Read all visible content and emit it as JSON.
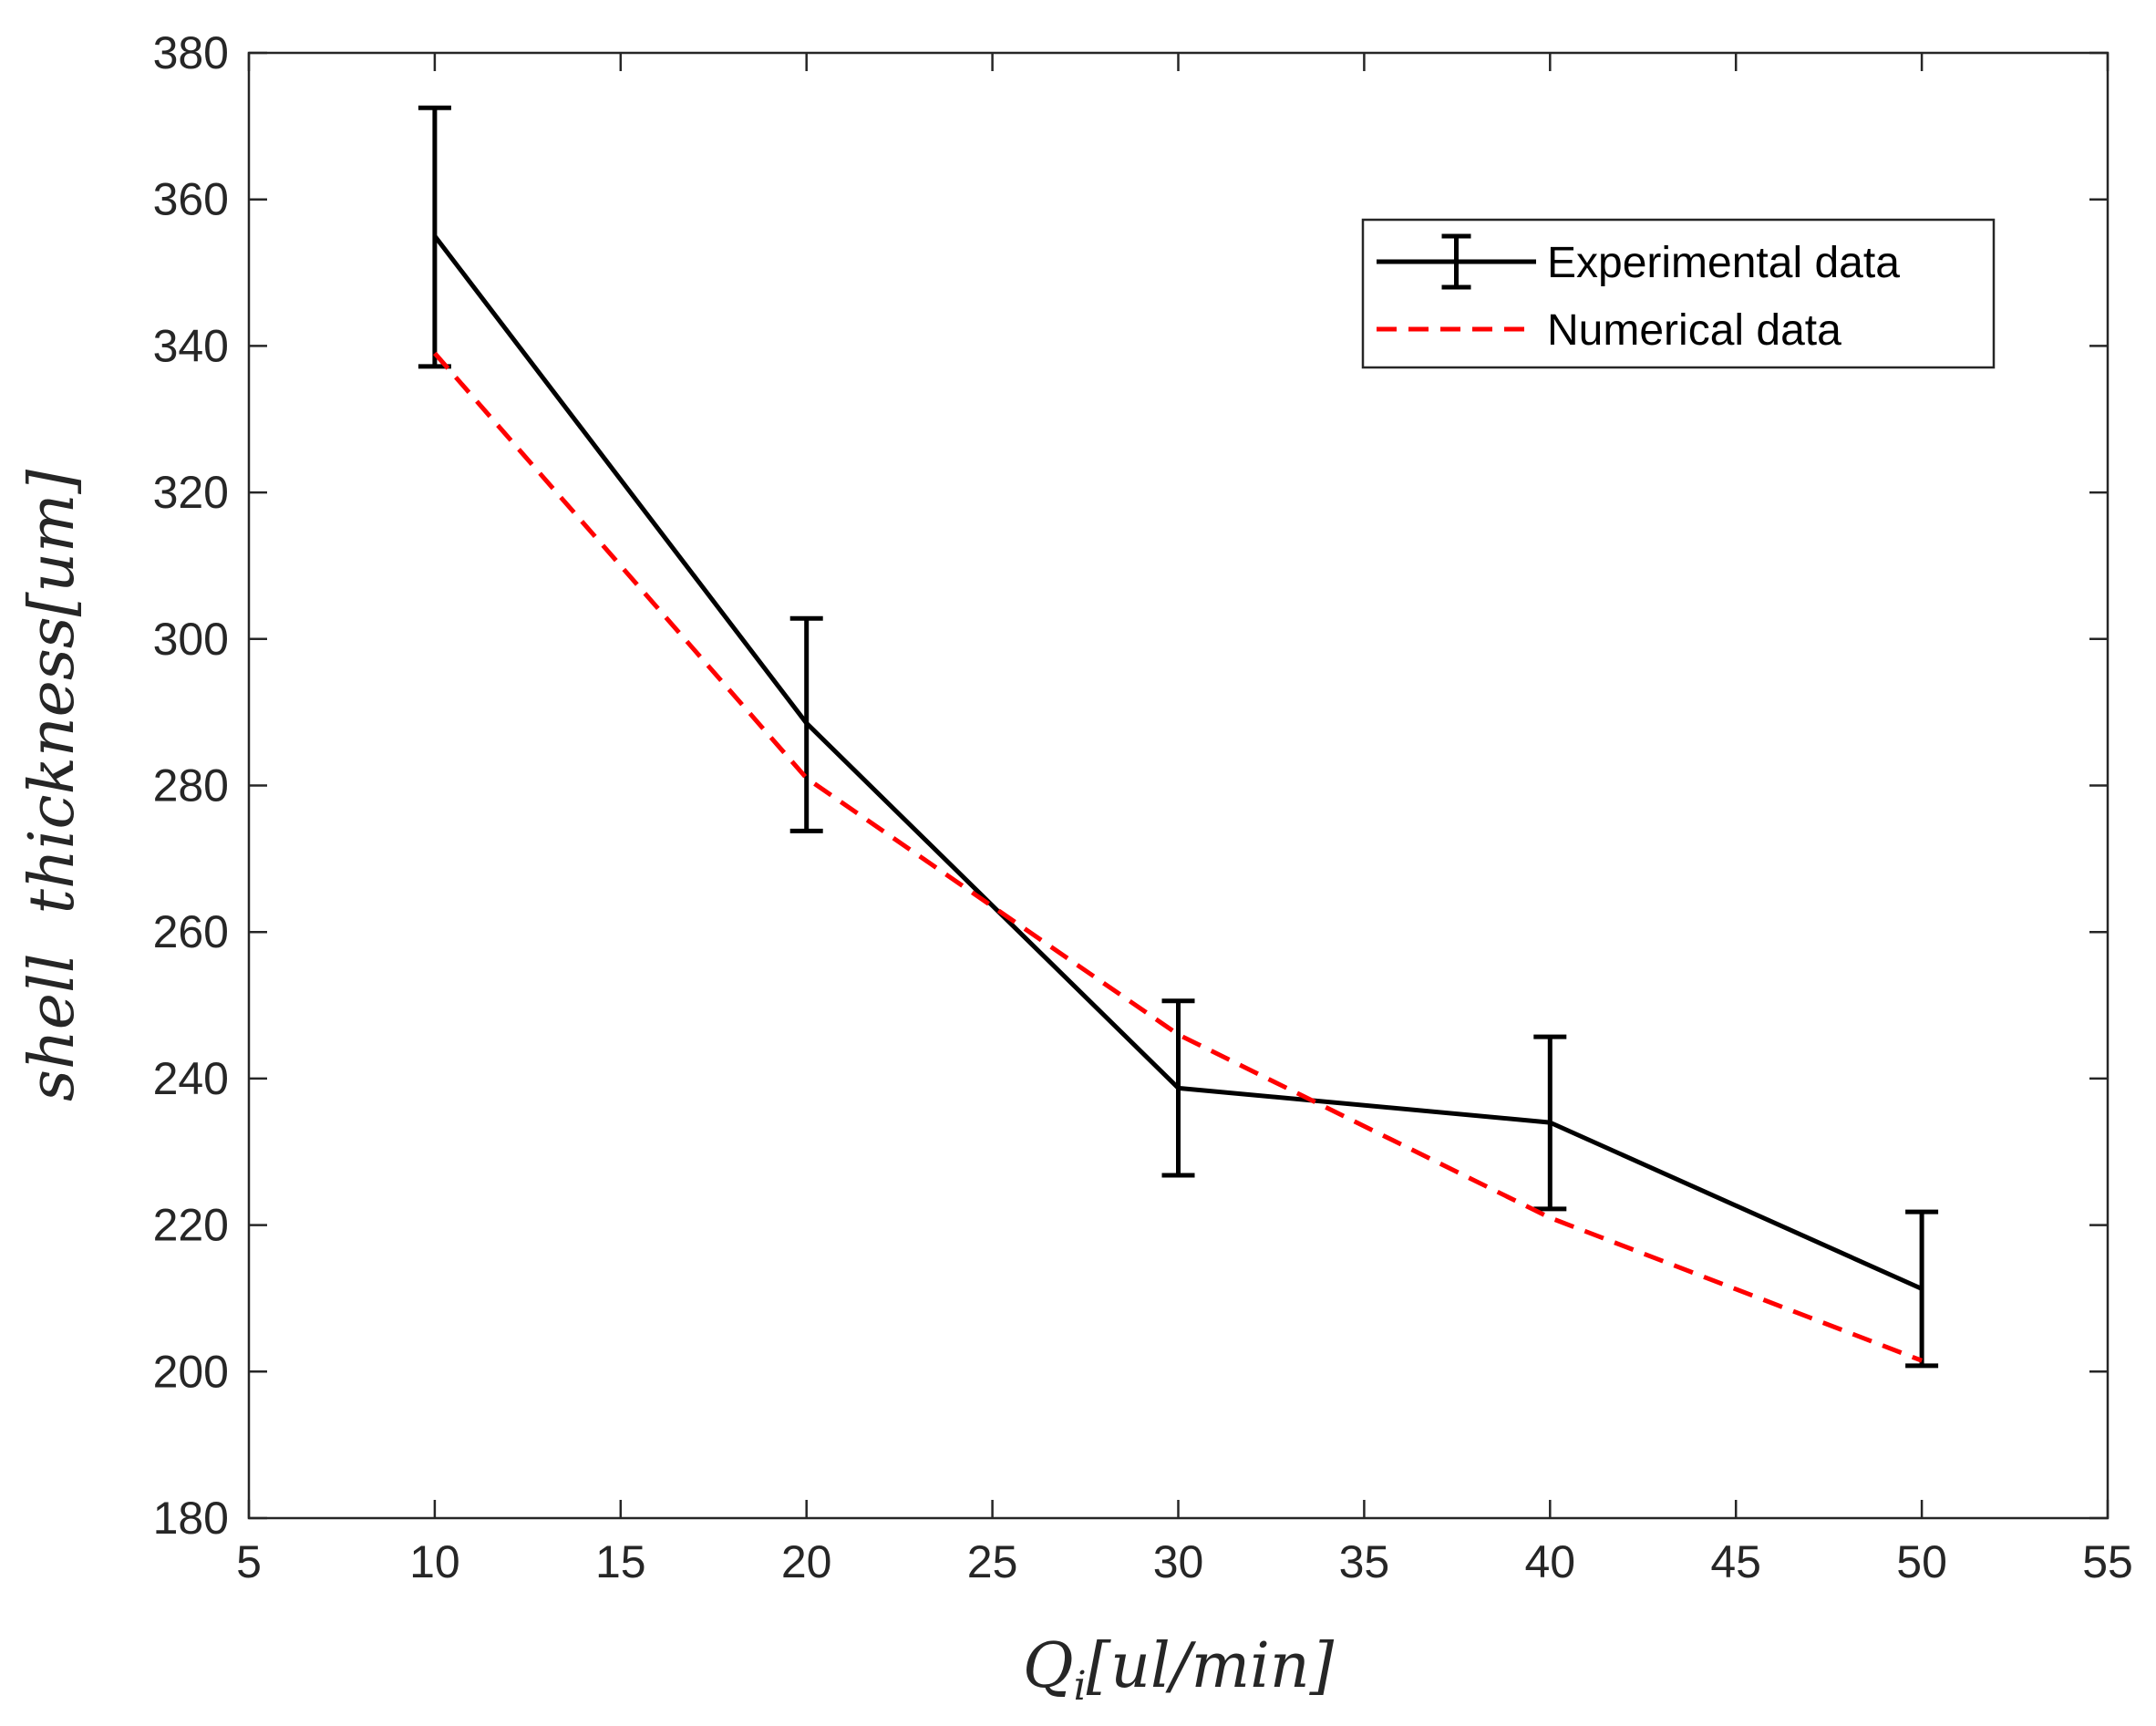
{
  "chart_data": {
    "type": "line",
    "title": "",
    "xlabel": "Q_i[ul/min]",
    "xlabel_parts": {
      "main": "Q",
      "subscript": "i",
      "rest": "[ul/min]"
    },
    "ylabel": "shell  thickness[um]",
    "xlim": [
      5,
      55
    ],
    "ylim": [
      180,
      380
    ],
    "xticks": [
      5,
      10,
      15,
      20,
      25,
      30,
      35,
      40,
      45,
      50,
      55
    ],
    "yticks": [
      180,
      200,
      220,
      240,
      260,
      280,
      300,
      320,
      340,
      360,
      380
    ],
    "grid": false,
    "legend_position": "top-right",
    "x": [
      10,
      20,
      30,
      40,
      50
    ],
    "series": [
      {
        "name": "Experimental data",
        "style": "solid",
        "color": "#000000",
        "values": [
          355,
          288.5,
          238.7,
          234,
          211.3
        ],
        "error_lower": [
          337.2,
          273.8,
          226.8,
          222.2,
          200.8
        ],
        "error_upper": [
          372.5,
          302.8,
          250.6,
          245.7,
          221.8
        ]
      },
      {
        "name": "Numerical data",
        "style": "dashed",
        "color": "#ff0000",
        "values": [
          339,
          281,
          246,
          221,
          201.5
        ]
      }
    ]
  }
}
